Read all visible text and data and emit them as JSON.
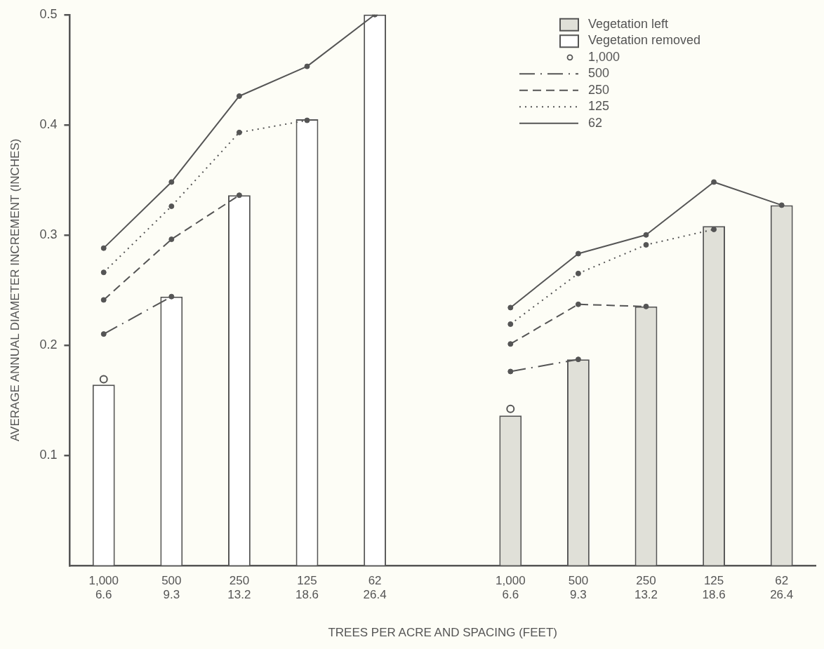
{
  "chart_data": {
    "type": "bar",
    "xlabel": "TREES PER ACRE AND SPACING (FEET)",
    "ylabel": "AVERAGE ANNUAL DIAMETER INCREMENT (INCHES)",
    "categories": [
      "1,000\n6.6",
      "500\n9.3",
      "250\n13.2",
      "125\n18.6",
      "62\n26.4",
      null,
      "1,000\n6.6",
      "500\n9.3",
      "250\n13.2",
      "125\n18.6",
      "62\n26.4"
    ],
    "ylim": [
      0,
      0.5
    ],
    "yticks": [
      0.1,
      0.2,
      0.3,
      0.4,
      0.5
    ],
    "grid": false,
    "legend": "top right",
    "series": [
      {
        "name": "Vegetation left",
        "color": "#e0e0d8",
        "values": [
          null,
          null,
          null,
          null,
          null,
          null,
          0.136,
          0.187,
          0.235,
          0.308,
          0.327
        ]
      },
      {
        "name": "Vegetation removed",
        "color": "#ffffff",
        "values": [
          0.164,
          0.244,
          0.336,
          0.405,
          0.5,
          null,
          null,
          null,
          null,
          null,
          null
        ]
      },
      {
        "name": "1,000",
        "type": "scatter",
        "marker": "circle",
        "color": "#555555",
        "values": [
          0.169,
          null,
          null,
          null,
          null,
          null,
          0.142,
          null,
          null,
          null,
          null
        ]
      },
      {
        "name": "500",
        "type": "line",
        "line_style": "dashdot",
        "marker": "circle",
        "color": "#555555",
        "values": [
          0.21,
          0.244,
          null,
          null,
          null,
          null,
          0.176,
          0.187,
          null,
          null,
          null
        ]
      },
      {
        "name": "250",
        "type": "line",
        "line_style": "dashed",
        "marker": "circle",
        "color": "#555555",
        "values": [
          0.241,
          0.296,
          0.336,
          null,
          null,
          null,
          0.201,
          0.237,
          0.235,
          null,
          null
        ]
      },
      {
        "name": "125",
        "type": "line",
        "line_style": "dotted",
        "marker": "circle",
        "color": "#555555",
        "values": [
          0.266,
          0.326,
          0.393,
          0.404,
          null,
          null,
          0.219,
          0.265,
          0.291,
          0.305,
          null
        ]
      },
      {
        "name": "62",
        "type": "line",
        "line_style": "solid",
        "marker": "circle",
        "color": "#555555",
        "values": [
          0.288,
          0.348,
          0.426,
          0.453,
          0.5,
          null,
          0.234,
          0.283,
          0.3,
          0.348,
          0.327
        ]
      }
    ]
  }
}
